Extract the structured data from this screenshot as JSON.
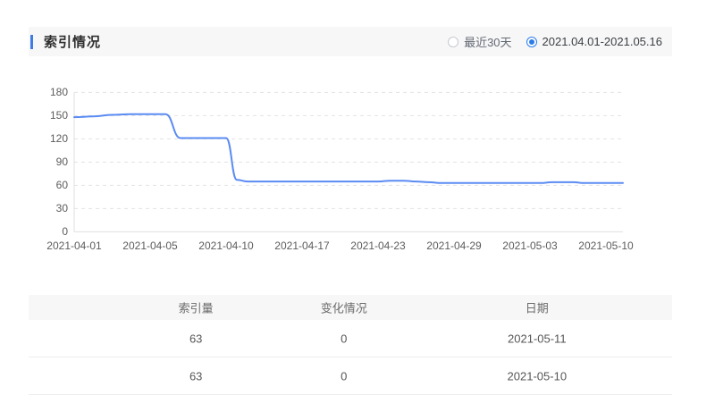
{
  "header": {
    "title": "索引情况",
    "range_options": [
      {
        "label": "最近30天",
        "selected": false
      },
      {
        "label": "2021.04.01-2021.05.16",
        "selected": true
      }
    ]
  },
  "chart_data": {
    "type": "line",
    "title": "",
    "xlabel": "",
    "ylabel": "",
    "ylim": [
      0,
      180
    ],
    "y_ticks": [
      0,
      30,
      60,
      90,
      120,
      150,
      180
    ],
    "grid": "horizontal-dashed",
    "line_color": "#5b8bf2",
    "x_tick_labels": [
      "2021-04-01",
      "2021-04-05",
      "2021-04-10",
      "2021-04-17",
      "2021-04-23",
      "2021-04-29",
      "2021-05-03",
      "2021-05-10"
    ],
    "x": [
      "2021-04-01",
      "2021-04-02",
      "2021-04-03",
      "2021-04-04",
      "2021-04-05",
      "2021-04-06",
      "2021-04-07",
      "2021-04-08",
      "2021-04-09",
      "2021-04-10",
      "2021-04-11",
      "2021-04-12",
      "2021-04-13",
      "2021-04-14",
      "2021-04-15",
      "2021-04-16",
      "2021-04-17",
      "2021-04-18",
      "2021-04-19",
      "2021-04-20",
      "2021-04-21",
      "2021-04-22",
      "2021-04-23",
      "2021-04-24",
      "2021-04-25",
      "2021-04-26",
      "2021-04-27",
      "2021-04-28",
      "2021-04-29",
      "2021-04-30",
      "2021-05-01",
      "2021-05-02",
      "2021-05-03",
      "2021-05-04",
      "2021-05-05",
      "2021-05-06",
      "2021-05-07",
      "2021-05-08",
      "2021-05-09",
      "2021-05-10",
      "2021-05-11",
      "2021-05-12",
      "2021-05-13",
      "2021-05-14",
      "2021-05-15",
      "2021-05-16"
    ],
    "series": [
      {
        "name": "索引量",
        "values": [
          148,
          149,
          151,
          152,
          152,
          152,
          121,
          121,
          121,
          121,
          67,
          65,
          65,
          65,
          65,
          65,
          65,
          65,
          65,
          65,
          65,
          65,
          65,
          66,
          66,
          65,
          64,
          63,
          63,
          63,
          63,
          63,
          63,
          63,
          64,
          64,
          64,
          63,
          63,
          63,
          63,
          63,
          63,
          63,
          63,
          63
        ]
      }
    ]
  },
  "table": {
    "columns": [
      "索引量",
      "变化情况",
      "日期"
    ],
    "rows": [
      [
        "63",
        "0",
        "2021-05-11"
      ],
      [
        "63",
        "0",
        "2021-05-10"
      ]
    ]
  },
  "colors": {
    "accent_blue": "#3e7ce4",
    "radio_selected": "#2d7ce9",
    "line_blue": "#5b8bf2",
    "band_bg": "#f7f7f8"
  }
}
